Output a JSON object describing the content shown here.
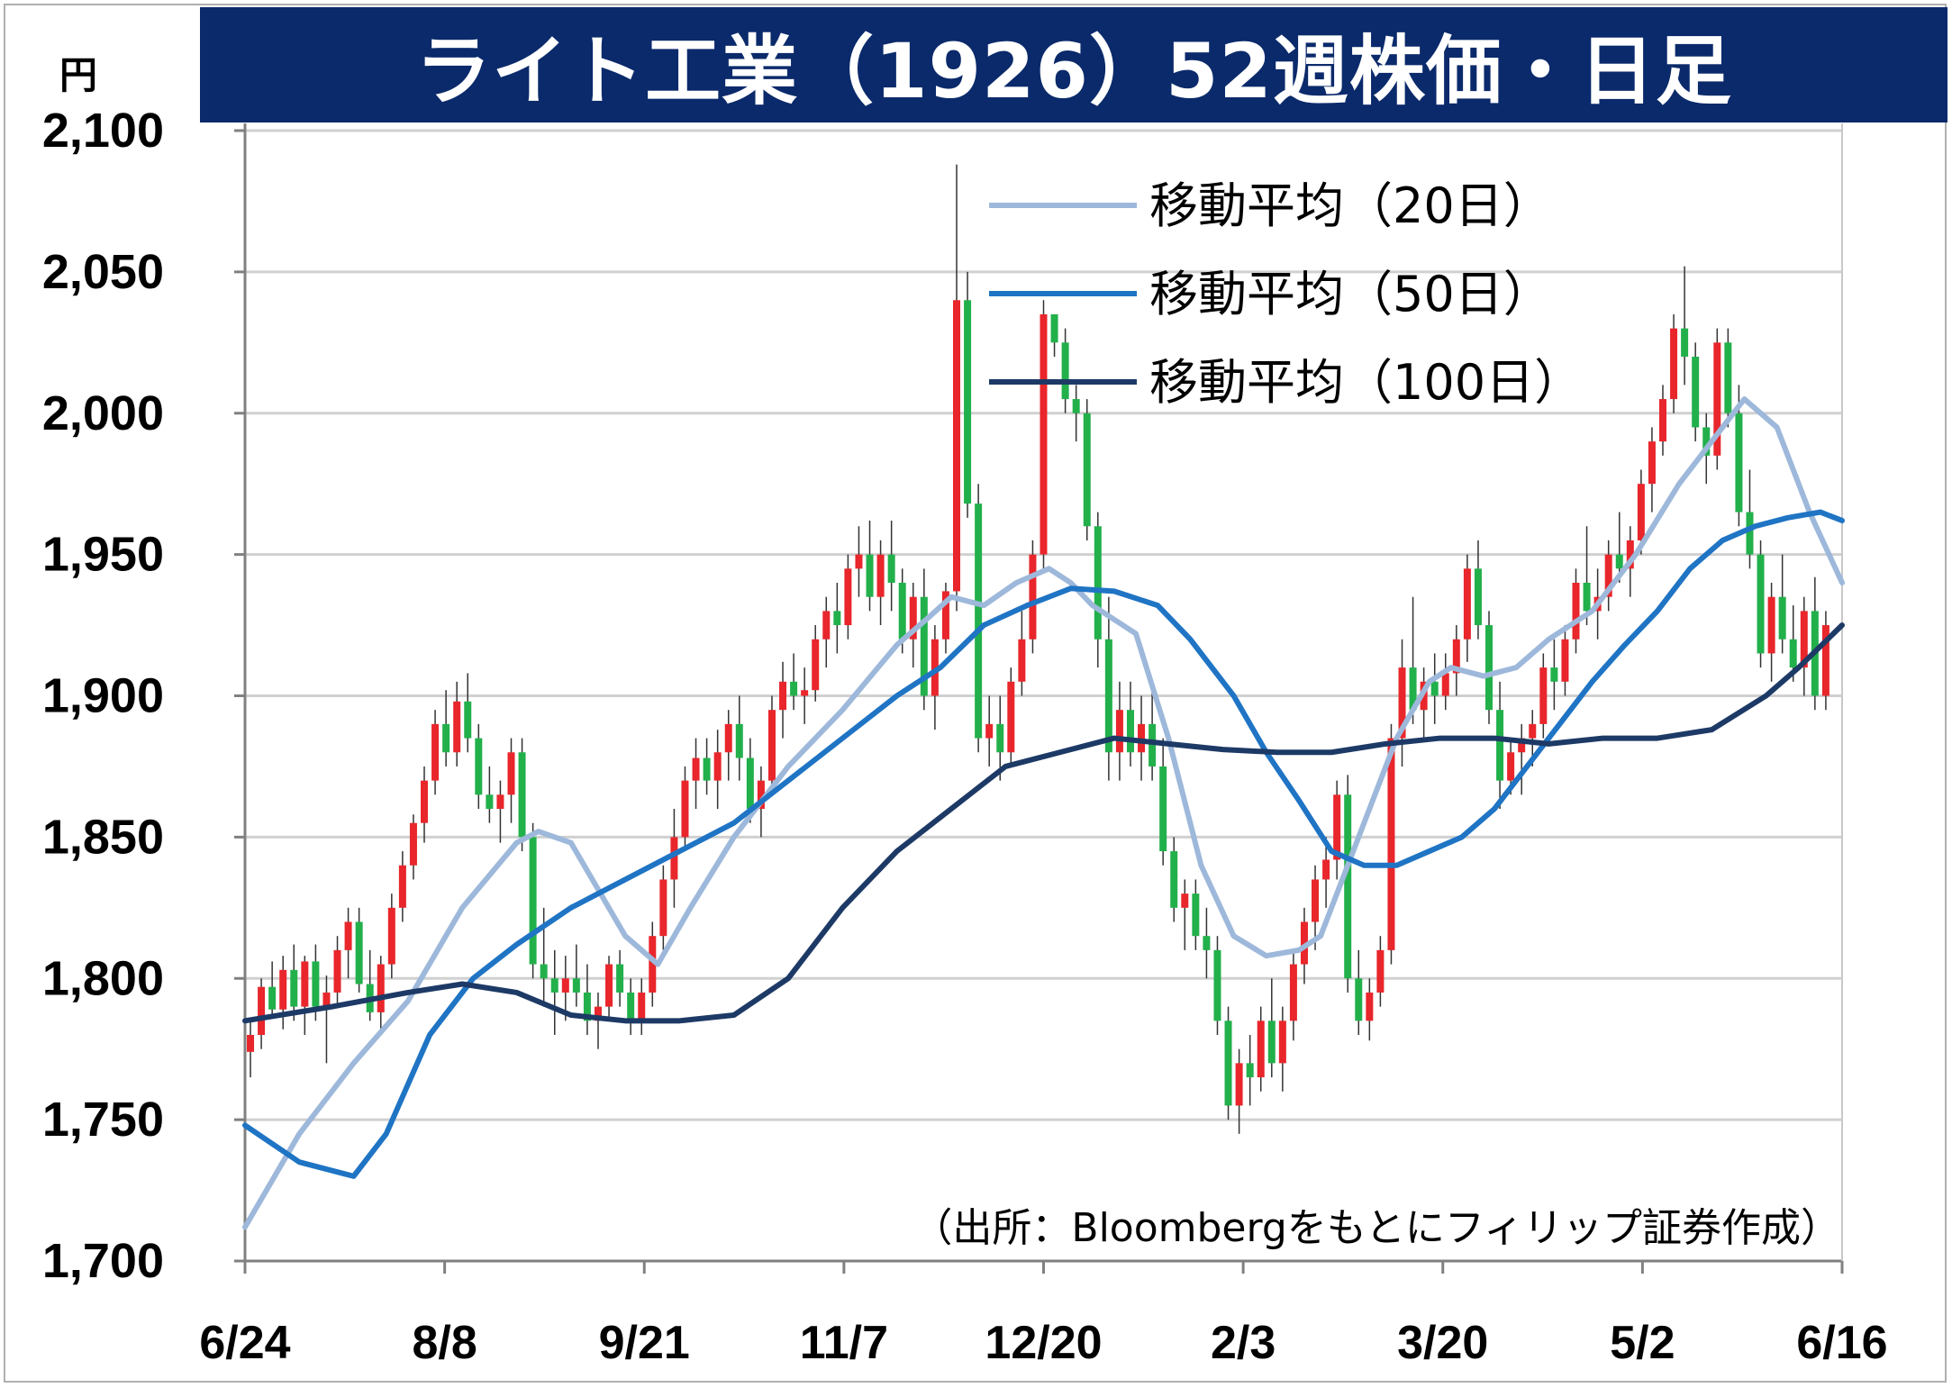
{
  "title": "ライト工業（1926）52週株価・日足",
  "unit_label": "円",
  "source_note": "（出所：Bloombergをもとにフィリップ証券作成）",
  "colors": {
    "title_bg": "#0b2a6b",
    "up": "#e8262b",
    "down": "#22b04b",
    "ma20": "#9db8da",
    "ma50": "#1f74c4",
    "ma100": "#1d3a66",
    "grid": "#d0d0d0"
  },
  "chart_data": {
    "type": "candlestick",
    "ylim": [
      1700,
      2100
    ],
    "y_ticks": [
      {
        "value": 1700,
        "label": "1,700"
      },
      {
        "value": 1750,
        "label": "1,750"
      },
      {
        "value": 1800,
        "label": "1,800"
      },
      {
        "value": 1850,
        "label": "1,850"
      },
      {
        "value": 1900,
        "label": "1,900"
      },
      {
        "value": 1950,
        "label": "1,950"
      },
      {
        "value": 2000,
        "label": "2,000"
      },
      {
        "value": 2050,
        "label": "2,050"
      },
      {
        "value": 2100,
        "label": "2,100"
      }
    ],
    "x_ticks": [
      "6/24",
      "8/8",
      "9/21",
      "11/7",
      "12/20",
      "2/3",
      "3/20",
      "5/2",
      "6/16"
    ],
    "legend_position": "top-right",
    "grid": true,
    "candles_ohlc": [
      [
        1774,
        1785,
        1765,
        1780
      ],
      [
        1780,
        1800,
        1775,
        1797
      ],
      [
        1797,
        1806,
        1786,
        1789
      ],
      [
        1789,
        1808,
        1782,
        1803
      ],
      [
        1803,
        1812,
        1785,
        1790
      ],
      [
        1790,
        1808,
        1780,
        1806
      ],
      [
        1806,
        1812,
        1785,
        1790
      ],
      [
        1790,
        1801,
        1770,
        1795
      ],
      [
        1795,
        1815,
        1790,
        1810
      ],
      [
        1810,
        1825,
        1800,
        1820
      ],
      [
        1820,
        1825,
        1795,
        1798
      ],
      [
        1798,
        1810,
        1785,
        1788
      ],
      [
        1788,
        1808,
        1782,
        1805
      ],
      [
        1805,
        1830,
        1800,
        1825
      ],
      [
        1825,
        1845,
        1820,
        1840
      ],
      [
        1840,
        1858,
        1835,
        1855
      ],
      [
        1855,
        1875,
        1848,
        1870
      ],
      [
        1870,
        1895,
        1865,
        1890
      ],
      [
        1890,
        1902,
        1875,
        1880
      ],
      [
        1880,
        1905,
        1875,
        1898
      ],
      [
        1898,
        1908,
        1880,
        1885
      ],
      [
        1885,
        1890,
        1860,
        1865
      ],
      [
        1865,
        1875,
        1855,
        1860
      ],
      [
        1860,
        1870,
        1848,
        1865
      ],
      [
        1865,
        1885,
        1855,
        1880
      ],
      [
        1880,
        1885,
        1845,
        1850
      ],
      [
        1850,
        1855,
        1800,
        1805
      ],
      [
        1805,
        1825,
        1790,
        1800
      ],
      [
        1800,
        1810,
        1780,
        1795
      ],
      [
        1795,
        1808,
        1785,
        1800
      ],
      [
        1800,
        1812,
        1790,
        1795
      ],
      [
        1795,
        1805,
        1780,
        1785
      ],
      [
        1785,
        1795,
        1775,
        1790
      ],
      [
        1790,
        1808,
        1785,
        1805
      ],
      [
        1805,
        1810,
        1790,
        1795
      ],
      [
        1795,
        1800,
        1780,
        1785
      ],
      [
        1785,
        1800,
        1780,
        1795
      ],
      [
        1795,
        1820,
        1790,
        1815
      ],
      [
        1815,
        1840,
        1810,
        1835
      ],
      [
        1835,
        1860,
        1825,
        1850
      ],
      [
        1850,
        1875,
        1845,
        1870
      ],
      [
        1870,
        1885,
        1860,
        1878
      ],
      [
        1878,
        1885,
        1865,
        1870
      ],
      [
        1870,
        1888,
        1860,
        1880
      ],
      [
        1880,
        1895,
        1870,
        1890
      ],
      [
        1890,
        1900,
        1870,
        1878
      ],
      [
        1878,
        1885,
        1855,
        1860
      ],
      [
        1860,
        1875,
        1850,
        1870
      ],
      [
        1870,
        1900,
        1865,
        1895
      ],
      [
        1895,
        1912,
        1885,
        1905
      ],
      [
        1905,
        1915,
        1895,
        1900
      ],
      [
        1900,
        1910,
        1890,
        1902
      ],
      [
        1902,
        1925,
        1898,
        1920
      ],
      [
        1920,
        1935,
        1910,
        1930
      ],
      [
        1930,
        1940,
        1915,
        1925
      ],
      [
        1925,
        1950,
        1920,
        1945
      ],
      [
        1945,
        1960,
        1935,
        1950
      ],
      [
        1950,
        1962,
        1930,
        1935
      ],
      [
        1935,
        1955,
        1925,
        1950
      ],
      [
        1950,
        1962,
        1930,
        1940
      ],
      [
        1940,
        1945,
        1915,
        1920
      ],
      [
        1920,
        1940,
        1910,
        1935
      ],
      [
        1935,
        1945,
        1895,
        1900
      ],
      [
        1900,
        1925,
        1888,
        1920
      ],
      [
        1920,
        1940,
        1915,
        1937
      ],
      [
        1937,
        2088,
        1930,
        2040
      ],
      [
        2040,
        2050,
        1963,
        1968
      ],
      [
        1968,
        1975,
        1880,
        1885
      ],
      [
        1885,
        1900,
        1875,
        1890
      ],
      [
        1890,
        1900,
        1870,
        1880
      ],
      [
        1880,
        1910,
        1875,
        1905
      ],
      [
        1905,
        1930,
        1900,
        1920
      ],
      [
        1920,
        1955,
        1915,
        1950
      ],
      [
        1950,
        2040,
        1945,
        2035
      ],
      [
        2035,
        2035,
        2020,
        2025
      ],
      [
        2025,
        2030,
        2000,
        2005
      ],
      [
        2005,
        2010,
        1990,
        2000
      ],
      [
        2000,
        2005,
        1955,
        1960
      ],
      [
        1960,
        1965,
        1910,
        1920
      ],
      [
        1920,
        1935,
        1870,
        1880
      ],
      [
        1880,
        1905,
        1870,
        1895
      ],
      [
        1895,
        1905,
        1875,
        1880
      ],
      [
        1880,
        1900,
        1870,
        1890
      ],
      [
        1890,
        1902,
        1870,
        1875
      ],
      [
        1875,
        1885,
        1840,
        1845
      ],
      [
        1845,
        1850,
        1820,
        1825
      ],
      [
        1825,
        1835,
        1810,
        1830
      ],
      [
        1830,
        1835,
        1810,
        1815
      ],
      [
        1815,
        1825,
        1800,
        1810
      ],
      [
        1810,
        1815,
        1780,
        1785
      ],
      [
        1785,
        1790,
        1750,
        1755
      ],
      [
        1755,
        1775,
        1745,
        1770
      ],
      [
        1770,
        1780,
        1755,
        1765
      ],
      [
        1765,
        1790,
        1760,
        1785
      ],
      [
        1785,
        1800,
        1765,
        1770
      ],
      [
        1770,
        1790,
        1760,
        1785
      ],
      [
        1785,
        1810,
        1778,
        1805
      ],
      [
        1805,
        1825,
        1798,
        1820
      ],
      [
        1820,
        1840,
        1810,
        1835
      ],
      [
        1835,
        1850,
        1825,
        1842
      ],
      [
        1842,
        1870,
        1835,
        1865
      ],
      [
        1865,
        1872,
        1795,
        1800
      ],
      [
        1800,
        1810,
        1780,
        1785
      ],
      [
        1785,
        1800,
        1778,
        1795
      ],
      [
        1795,
        1815,
        1790,
        1810
      ],
      [
        1810,
        1890,
        1805,
        1885
      ],
      [
        1885,
        1920,
        1875,
        1910
      ],
      [
        1910,
        1935,
        1890,
        1895
      ],
      [
        1895,
        1910,
        1885,
        1905
      ],
      [
        1905,
        1915,
        1890,
        1900
      ],
      [
        1900,
        1915,
        1895,
        1908
      ],
      [
        1908,
        1925,
        1900,
        1920
      ],
      [
        1920,
        1950,
        1912,
        1945
      ],
      [
        1945,
        1955,
        1920,
        1925
      ],
      [
        1925,
        1930,
        1890,
        1895
      ],
      [
        1895,
        1905,
        1860,
        1870
      ],
      [
        1870,
        1885,
        1865,
        1880
      ],
      [
        1880,
        1890,
        1865,
        1885
      ],
      [
        1885,
        1895,
        1875,
        1890
      ],
      [
        1890,
        1915,
        1885,
        1910
      ],
      [
        1910,
        1920,
        1895,
        1905
      ],
      [
        1905,
        1925,
        1900,
        1920
      ],
      [
        1920,
        1945,
        1915,
        1940
      ],
      [
        1940,
        1960,
        1925,
        1930
      ],
      [
        1930,
        1945,
        1920,
        1935
      ],
      [
        1935,
        1955,
        1930,
        1950
      ],
      [
        1950,
        1965,
        1940,
        1945
      ],
      [
        1945,
        1960,
        1935,
        1955
      ],
      [
        1955,
        1980,
        1950,
        1975
      ],
      [
        1975,
        1995,
        1965,
        1990
      ],
      [
        1990,
        2010,
        1985,
        2005
      ],
      [
        2005,
        2035,
        2000,
        2030
      ],
      [
        2030,
        2052,
        2010,
        2020
      ],
      [
        2020,
        2025,
        1990,
        1995
      ],
      [
        1995,
        2000,
        1975,
        1985
      ],
      [
        1985,
        2030,
        1980,
        2025
      ],
      [
        2025,
        2030,
        1995,
        2000
      ],
      [
        2000,
        2010,
        1960,
        1965
      ],
      [
        1965,
        1980,
        1945,
        1950
      ],
      [
        1950,
        1955,
        1910,
        1915
      ],
      [
        1915,
        1940,
        1905,
        1935
      ],
      [
        1935,
        1950,
        1915,
        1920
      ],
      [
        1920,
        1932,
        1905,
        1910
      ],
      [
        1910,
        1935,
        1900,
        1930
      ],
      [
        1930,
        1942,
        1895,
        1900
      ],
      [
        1900,
        1930,
        1895,
        1925
      ]
    ],
    "ma20": [
      [
        0,
        1712
      ],
      [
        5,
        1745
      ],
      [
        10,
        1770
      ],
      [
        15,
        1792
      ],
      [
        20,
        1825
      ],
      [
        25,
        1848
      ],
      [
        27,
        1852
      ],
      [
        30,
        1848
      ],
      [
        35,
        1815
      ],
      [
        38,
        1805
      ],
      [
        41,
        1825
      ],
      [
        45,
        1850
      ],
      [
        50,
        1875
      ],
      [
        55,
        1895
      ],
      [
        60,
        1918
      ],
      [
        63,
        1928
      ],
      [
        65,
        1935
      ],
      [
        68,
        1932
      ],
      [
        71,
        1940
      ],
      [
        74,
        1945
      ],
      [
        76,
        1940
      ],
      [
        78,
        1932
      ],
      [
        82,
        1922
      ],
      [
        85,
        1885
      ],
      [
        88,
        1840
      ],
      [
        91,
        1815
      ],
      [
        94,
        1808
      ],
      [
        97,
        1810
      ],
      [
        99,
        1815
      ],
      [
        101,
        1835
      ],
      [
        103,
        1855
      ],
      [
        106,
        1885
      ],
      [
        109,
        1905
      ],
      [
        111,
        1910
      ],
      [
        114,
        1907
      ],
      [
        117,
        1910
      ],
      [
        120,
        1920
      ],
      [
        124,
        1930
      ],
      [
        128,
        1950
      ],
      [
        132,
        1975
      ],
      [
        135,
        1990
      ],
      [
        138,
        2005
      ],
      [
        141,
        1995
      ],
      [
        144,
        1965
      ],
      [
        147,
        1940
      ]
    ],
    "ma50": [
      [
        0,
        1748
      ],
      [
        5,
        1735
      ],
      [
        10,
        1730
      ],
      [
        13,
        1745
      ],
      [
        17,
        1780
      ],
      [
        21,
        1800
      ],
      [
        25,
        1812
      ],
      [
        30,
        1825
      ],
      [
        35,
        1835
      ],
      [
        40,
        1845
      ],
      [
        45,
        1855
      ],
      [
        50,
        1870
      ],
      [
        55,
        1885
      ],
      [
        60,
        1900
      ],
      [
        64,
        1910
      ],
      [
        68,
        1925
      ],
      [
        72,
        1932
      ],
      [
        76,
        1938
      ],
      [
        80,
        1937
      ],
      [
        84,
        1932
      ],
      [
        87,
        1920
      ],
      [
        91,
        1900
      ],
      [
        94,
        1880
      ],
      [
        97,
        1863
      ],
      [
        100,
        1845
      ],
      [
        103,
        1840
      ],
      [
        106,
        1840
      ],
      [
        109,
        1845
      ],
      [
        112,
        1850
      ],
      [
        115,
        1860
      ],
      [
        118,
        1875
      ],
      [
        121,
        1890
      ],
      [
        124,
        1905
      ],
      [
        127,
        1918
      ],
      [
        130,
        1930
      ],
      [
        133,
        1945
      ],
      [
        136,
        1955
      ],
      [
        139,
        1960
      ],
      [
        142,
        1963
      ],
      [
        145,
        1965
      ],
      [
        147,
        1962
      ]
    ],
    "ma100": [
      [
        0,
        1785
      ],
      [
        8,
        1790
      ],
      [
        15,
        1795
      ],
      [
        20,
        1798
      ],
      [
        25,
        1795
      ],
      [
        30,
        1787
      ],
      [
        35,
        1785
      ],
      [
        40,
        1785
      ],
      [
        45,
        1787
      ],
      [
        50,
        1800
      ],
      [
        55,
        1825
      ],
      [
        60,
        1845
      ],
      [
        65,
        1860
      ],
      [
        70,
        1875
      ],
      [
        75,
        1880
      ],
      [
        80,
        1885
      ],
      [
        85,
        1883
      ],
      [
        90,
        1881
      ],
      [
        95,
        1880
      ],
      [
        100,
        1880
      ],
      [
        105,
        1883
      ],
      [
        110,
        1885
      ],
      [
        115,
        1885
      ],
      [
        120,
        1883
      ],
      [
        125,
        1885
      ],
      [
        130,
        1885
      ],
      [
        135,
        1888
      ],
      [
        140,
        1900
      ],
      [
        143,
        1910
      ],
      [
        147,
        1925
      ]
    ],
    "series": [
      {
        "name": "移動平均（20日）",
        "key": "ma20"
      },
      {
        "name": "移動平均（50日）",
        "key": "ma50"
      },
      {
        "name": "移動平均（100日）",
        "key": "ma100"
      }
    ]
  }
}
